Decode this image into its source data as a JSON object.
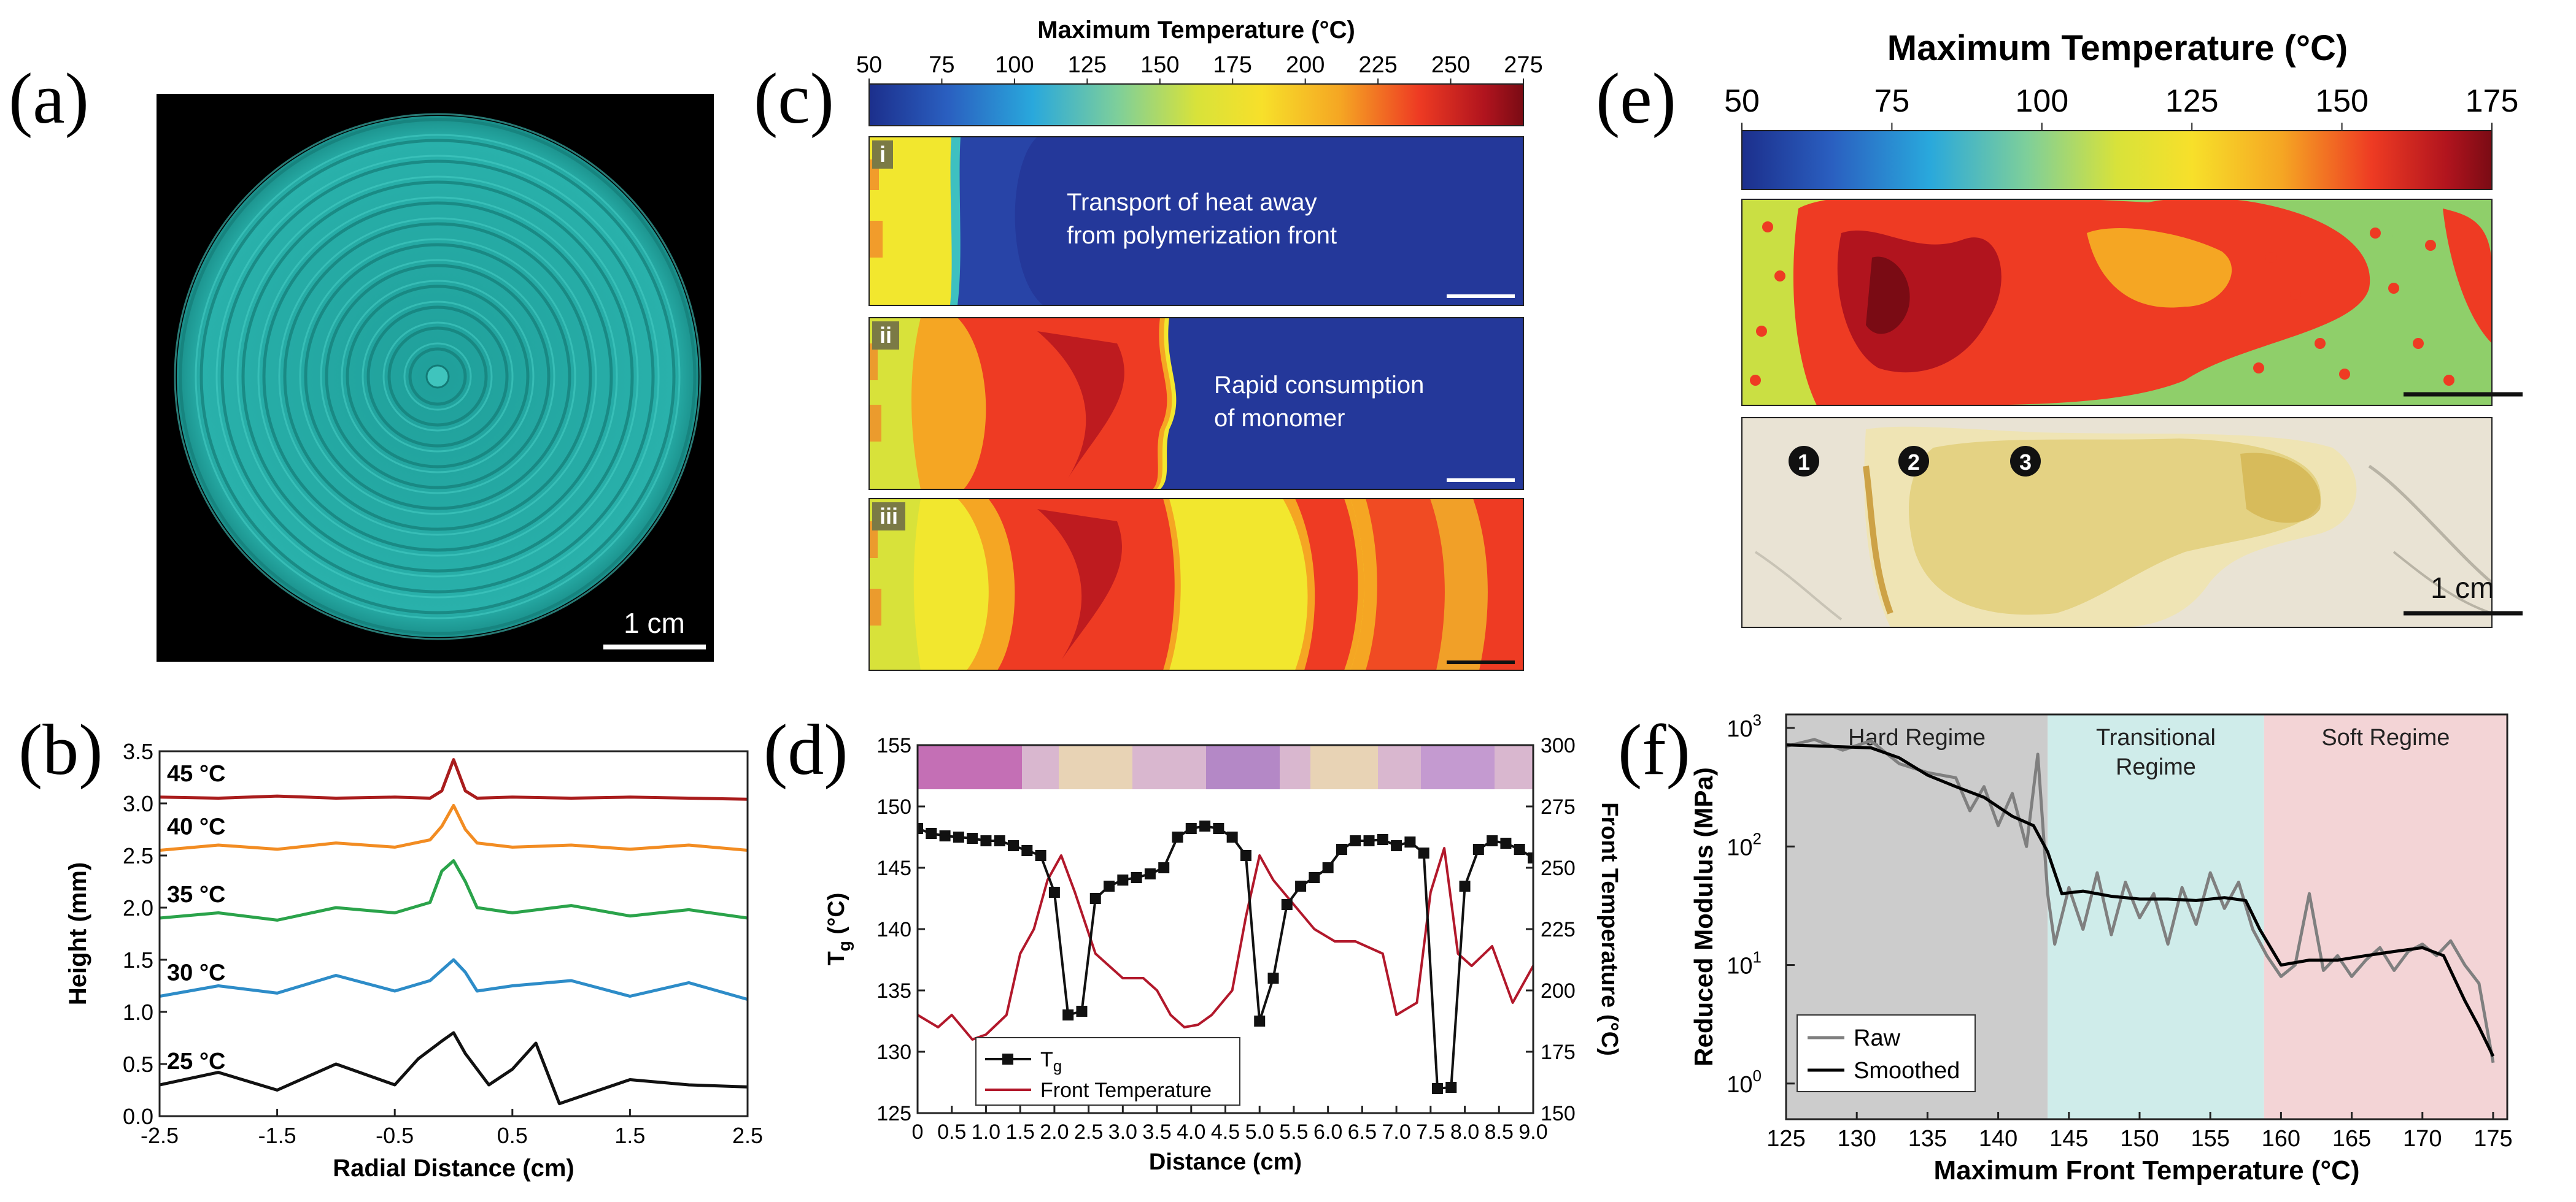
{
  "figure": {
    "panel_labels": [
      "(a)",
      "(b)",
      "(c)",
      "(d)",
      "(e)",
      "(f)"
    ],
    "colors": {
      "teal": "#23a6a0",
      "dark_red": "#a91c1c",
      "orange": "#f28c22",
      "green": "#2aa34a",
      "blue": "#2d8cc8",
      "black": "#111111",
      "colormap": [
        "#1c2f8c",
        "#2a5fc0",
        "#29a8dc",
        "#7ecf9a",
        "#d8e23a",
        "#f7e02a",
        "#f5a623",
        "#ee3b23",
        "#b1141e",
        "#7a0b14"
      ],
      "regime_hard": "#cccccc",
      "regime_transitional": "#cfecea",
      "regime_soft": "#f3d4d6"
    }
  },
  "panel_a": {
    "scalebar_label": "1 cm",
    "icons": [
      "spiral-disc-render"
    ]
  },
  "panel_c": {
    "colorbar_title": "Maximum Temperature (°C)",
    "colorbar_ticks": [
      "50",
      "75",
      "100",
      "125",
      "150",
      "175",
      "200",
      "225",
      "250",
      "275"
    ],
    "subpanels": [
      {
        "tag": "i",
        "caption": [
          "Transport of heat away",
          "from polymerization front"
        ]
      },
      {
        "tag": "ii",
        "caption": [
          "Rapid consumption",
          "of monomer"
        ]
      },
      {
        "tag": "iii",
        "caption": []
      }
    ]
  },
  "panel_e": {
    "colorbar_title": "Maximum Temperature (°C)",
    "colorbar_ticks": [
      "50",
      "75",
      "100",
      "125",
      "150",
      "175"
    ],
    "markers": [
      "1",
      "2",
      "3"
    ],
    "scalebar_label": "1 cm"
  },
  "chart_data": [
    {
      "panel": "(b)",
      "type": "line",
      "xlabel": "Radial Distance (cm)",
      "ylabel": "Height (mm)",
      "xlim": [
        -2.5,
        2.5
      ],
      "ylim": [
        0.0,
        3.5
      ],
      "xticks": [
        "-2.5",
        "-1.5",
        "-0.5",
        "0.5",
        "1.5",
        "2.5"
      ],
      "yticks": [
        "0.0",
        "0.5",
        "1.0",
        "1.5",
        "2.0",
        "2.5",
        "3.0",
        "3.5"
      ],
      "series": [
        {
          "name": "45 °C",
          "color": "#a91c1c",
          "x": [
            -2.5,
            -2.0,
            -1.5,
            -1.0,
            -0.5,
            -0.2,
            -0.1,
            0.0,
            0.1,
            0.2,
            0.5,
            1.0,
            1.5,
            2.0,
            2.5
          ],
          "y": [
            3.06,
            3.05,
            3.07,
            3.05,
            3.06,
            3.05,
            3.12,
            3.42,
            3.12,
            3.05,
            3.06,
            3.05,
            3.06,
            3.05,
            3.04
          ]
        },
        {
          "name": "40 °C",
          "color": "#f28c22",
          "x": [
            -2.5,
            -2.0,
            -1.5,
            -1.0,
            -0.5,
            -0.2,
            -0.1,
            0.0,
            0.1,
            0.2,
            0.5,
            1.0,
            1.5,
            2.0,
            2.5
          ],
          "y": [
            2.55,
            2.6,
            2.56,
            2.62,
            2.58,
            2.65,
            2.78,
            2.98,
            2.75,
            2.62,
            2.58,
            2.6,
            2.56,
            2.6,
            2.55
          ]
        },
        {
          "name": "35 °C",
          "color": "#2aa34a",
          "x": [
            -2.5,
            -2.0,
            -1.5,
            -1.0,
            -0.5,
            -0.2,
            -0.1,
            0.0,
            0.1,
            0.2,
            0.5,
            1.0,
            1.5,
            2.0,
            2.5
          ],
          "y": [
            1.9,
            1.95,
            1.88,
            2.0,
            1.95,
            2.05,
            2.35,
            2.45,
            2.25,
            2.0,
            1.95,
            2.02,
            1.92,
            1.98,
            1.9
          ]
        },
        {
          "name": "30 °C",
          "color": "#2d8cc8",
          "x": [
            -2.5,
            -2.0,
            -1.5,
            -1.0,
            -0.5,
            -0.2,
            -0.1,
            0.0,
            0.1,
            0.2,
            0.5,
            1.0,
            1.5,
            2.0,
            2.5
          ],
          "y": [
            1.15,
            1.25,
            1.18,
            1.35,
            1.2,
            1.3,
            1.4,
            1.5,
            1.38,
            1.2,
            1.25,
            1.3,
            1.15,
            1.28,
            1.12
          ]
        },
        {
          "name": "25 °C",
          "color": "#111111",
          "x": [
            -2.5,
            -2.0,
            -1.5,
            -1.0,
            -0.5,
            -0.3,
            -0.1,
            0.0,
            0.1,
            0.3,
            0.5,
            0.7,
            0.9,
            1.5,
            2.0,
            2.5
          ],
          "y": [
            0.3,
            0.42,
            0.25,
            0.5,
            0.3,
            0.55,
            0.72,
            0.8,
            0.6,
            0.3,
            0.45,
            0.7,
            0.12,
            0.35,
            0.3,
            0.28
          ]
        }
      ]
    },
    {
      "panel": "(d)",
      "type": "line",
      "xlabel": "Distance (cm)",
      "ylabel_left": "T",
      "ylabel_left_sub": "g",
      "ylabel_left_unit": " (°C)",
      "ylabel_right": "Front Temperature (°C)",
      "xlim": [
        0.0,
        9.0
      ],
      "ylim_left": [
        125,
        155
      ],
      "ylim_right": [
        150,
        300
      ],
      "xticks": [
        "0",
        "0.5",
        "1.0",
        "1.5",
        "2.0",
        "2.5",
        "3.0",
        "3.5",
        "4.0",
        "4.5",
        "5.0",
        "5.5",
        "6.0",
        "6.5",
        "7.0",
        "7.5",
        "8.0",
        "8.5",
        "9.0"
      ],
      "yticks_left": [
        "125",
        "130",
        "135",
        "140",
        "145",
        "150",
        "155"
      ],
      "yticks_right": [
        "150",
        "175",
        "200",
        "225",
        "250",
        "275",
        "300"
      ],
      "legend": [
        "T",
        "Front Temperature"
      ],
      "series": [
        {
          "name": "Tg",
          "color": "#111111",
          "marker": "square",
          "x": [
            0.0,
            0.2,
            0.4,
            0.6,
            0.8,
            1.0,
            1.2,
            1.4,
            1.6,
            1.8,
            2.0,
            2.2,
            2.4,
            2.6,
            2.8,
            3.0,
            3.2,
            3.4,
            3.6,
            3.8,
            4.0,
            4.2,
            4.4,
            4.6,
            4.8,
            5.0,
            5.2,
            5.4,
            5.6,
            5.8,
            6.0,
            6.2,
            6.4,
            6.6,
            6.8,
            7.0,
            7.2,
            7.4,
            7.6,
            7.8,
            8.0,
            8.2,
            8.4,
            8.6,
            8.8,
            9.0
          ],
          "y": [
            148.2,
            147.8,
            147.6,
            147.5,
            147.4,
            147.2,
            147.2,
            146.8,
            146.4,
            146.0,
            143.0,
            133.0,
            133.3,
            142.5,
            143.5,
            144.0,
            144.2,
            144.5,
            145.0,
            147.5,
            148.2,
            148.4,
            148.2,
            147.5,
            146.0,
            132.5,
            136.0,
            142.0,
            143.5,
            144.2,
            145.0,
            146.5,
            147.2,
            147.2,
            147.3,
            146.8,
            147.1,
            146.2,
            127.0,
            127.1,
            143.5,
            146.5,
            147.2,
            147.0,
            146.5,
            145.8
          ]
        },
        {
          "name": "Front Temperature",
          "color": "#b2182b",
          "x": [
            0.0,
            0.3,
            0.5,
            0.8,
            1.0,
            1.3,
            1.5,
            1.7,
            1.9,
            2.1,
            2.3,
            2.6,
            3.0,
            3.3,
            3.5,
            3.7,
            3.9,
            4.1,
            4.3,
            4.6,
            4.8,
            5.0,
            5.2,
            5.5,
            5.8,
            6.1,
            6.4,
            6.8,
            7.0,
            7.3,
            7.5,
            7.7,
            7.9,
            8.1,
            8.4,
            8.7,
            9.0
          ],
          "y": [
            190,
            185,
            190,
            180,
            182,
            190,
            215,
            225,
            245,
            255,
            240,
            215,
            205,
            205,
            200,
            190,
            185,
            186,
            190,
            200,
            230,
            255,
            245,
            235,
            225,
            220,
            220,
            215,
            190,
            195,
            240,
            258,
            215,
            210,
            218,
            195,
            210
          ]
        }
      ]
    },
    {
      "panel": "(f)",
      "type": "line",
      "log_y": true,
      "xlabel": "Maximum Front Temperature (°C)",
      "ylabel": "Reduced Modulus (MPa)",
      "xlim": [
        125,
        176
      ],
      "ylim": [
        0.5,
        1300
      ],
      "xticks": [
        "125",
        "130",
        "135",
        "140",
        "145",
        "150",
        "155",
        "160",
        "165",
        "170",
        "175"
      ],
      "yticks": [
        "10",
        "10",
        "10",
        "10"
      ],
      "yticks_exp": [
        "0",
        "1",
        "2",
        "3"
      ],
      "regions": [
        {
          "label": "Hard Regime",
          "range": [
            125,
            143.5
          ]
        },
        {
          "label": "Transitional",
          "label2": "Regime",
          "range": [
            143.5,
            158.8
          ]
        },
        {
          "label": "Soft Regime",
          "range": [
            158.8,
            176
          ]
        }
      ],
      "legend": [
        "Raw",
        "Smoothed"
      ],
      "series": [
        {
          "name": "Raw",
          "color": "#7f7f7f",
          "x": [
            125,
            127,
            129,
            131,
            133,
            135,
            137,
            138,
            139,
            140,
            141,
            142,
            142.8,
            143.5,
            144,
            145,
            146,
            147,
            148,
            149,
            150,
            151,
            152,
            153,
            154,
            155,
            156,
            157,
            158,
            159,
            160,
            161,
            162,
            163,
            164,
            165,
            166,
            167,
            168,
            169,
            170,
            171,
            172,
            173,
            174,
            175
          ],
          "y": [
            700,
            800,
            650,
            780,
            500,
            420,
            380,
            200,
            320,
            150,
            280,
            100,
            600,
            40,
            15,
            45,
            20,
            60,
            18,
            50,
            25,
            40,
            15,
            45,
            22,
            60,
            30,
            50,
            20,
            12,
            8,
            10,
            40,
            9,
            12,
            8,
            11,
            14,
            9,
            13,
            15,
            12,
            16,
            10,
            7,
            1.5
          ]
        },
        {
          "name": "Smoothed",
          "color": "#000000",
          "x": [
            125,
            128,
            131,
            133,
            135,
            137,
            139,
            141,
            142.5,
            143.5,
            144.5,
            146,
            148,
            150,
            152,
            154,
            156,
            157.5,
            158.5,
            160,
            162,
            164,
            166,
            168,
            170,
            171.5,
            173,
            174,
            175
          ],
          "y": [
            720,
            700,
            680,
            560,
            400,
            320,
            260,
            180,
            150,
            90,
            40,
            42,
            38,
            36,
            36,
            35,
            37,
            35,
            20,
            10,
            11,
            11,
            12,
            13,
            14,
            12,
            5,
            3,
            1.7
          ]
        }
      ]
    }
  ]
}
